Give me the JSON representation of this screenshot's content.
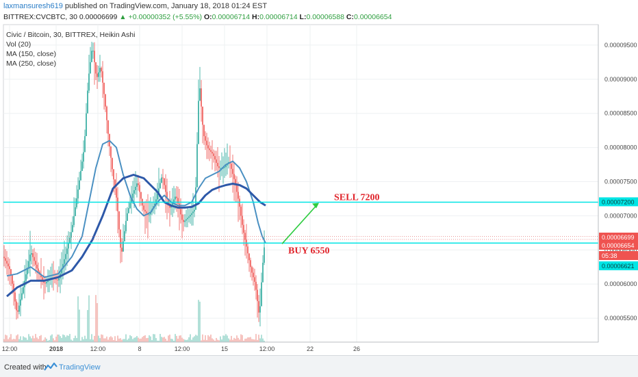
{
  "header": {
    "author": "laxmansuresh619",
    "published": "published on TradingView.com, January 18, 2018 01:24 EST",
    "symbol": "BITTREX:CVCBTC, 30",
    "last": "0.00006699",
    "change": "+0.00000352 (+5.55%)",
    "open_label": "O:",
    "open": "0.00006714",
    "high_label": "H:",
    "high": "0.00006714",
    "low_label": "L:",
    "low": "0.00006588",
    "close_label": "C:",
    "close": "0.00006654"
  },
  "legend": [
    "Civic / Bitcoin, 30, BITTREX, Heikin Ashi",
    "Vol (20)",
    "MA (150, close)",
    "MA (250, close)"
  ],
  "footer": {
    "created_with": "Created with",
    "brand": "TradingView"
  },
  "colors": {
    "up": "#26a69a",
    "down": "#ef5350",
    "ma150": "#4a90c2",
    "ma250": "#2d58a8",
    "hline": "#00e5e5",
    "annotation": "#e0242b",
    "arrow": "#2ecc40"
  },
  "chart_data": {
    "type": "candlestick",
    "title": "Civic / Bitcoin, 30, BITTREX, Heikin Ashi",
    "ylim": [
      5.15e-05,
      9.8e-05
    ],
    "y_ticks": [
      "0.00009500",
      "0.00009000",
      "0.00008500",
      "0.00008000",
      "0.00007500",
      "0.00007000",
      "0.00006500",
      "0.00006000",
      "0.00005500"
    ],
    "x_ticks": [
      "12:00",
      "2018",
      "12:00",
      "8",
      "12:00",
      "15",
      "12:00",
      "22",
      "26"
    ],
    "price_markers": [
      {
        "label": "0.00007200",
        "value": 7.2e-05,
        "style": "cyan"
      },
      {
        "label": "0.00006699",
        "value": 6.699e-05,
        "style": "red"
      },
      {
        "label": "0.00006654",
        "value": 6.654e-05,
        "style": "red"
      },
      {
        "label": "05:38",
        "value": 6.52e-05,
        "style": "red"
      },
      {
        "label": "0.00006621",
        "value": 6.621e-05,
        "style": "cyan"
      }
    ],
    "horizontal_lines": [
      7.2e-05,
      6.6e-05
    ],
    "annotations": [
      {
        "text": "SELL 7200",
        "value": 7.28e-05
      },
      {
        "text": "BUY 6550",
        "value": 6.5e-05
      }
    ],
    "price_path": [
      [
        0,
        6.4e-05
      ],
      [
        10,
        6.2e-05
      ],
      [
        20,
        5.55e-05
      ],
      [
        30,
        6e-05
      ],
      [
        40,
        6.48e-05
      ],
      [
        50,
        6.2e-05
      ],
      [
        60,
        6e-05
      ],
      [
        70,
        6.1e-05
      ],
      [
        80,
        6.05e-05
      ],
      [
        90,
        6.4e-05
      ],
      [
        100,
        6.8e-05
      ],
      [
        110,
        7.45e-05
      ],
      [
        118,
        8e-05
      ],
      [
        124,
        9e-05
      ],
      [
        130,
        9.5e-05
      ],
      [
        136,
        9e-05
      ],
      [
        142,
        9.2e-05
      ],
      [
        148,
        8.7e-05
      ],
      [
        154,
        8.1e-05
      ],
      [
        160,
        7.6e-05
      ],
      [
        166,
        7.2e-05
      ],
      [
        172,
        6.4e-05
      ],
      [
        180,
        7e-05
      ],
      [
        188,
        7.3e-05
      ],
      [
        196,
        7.5e-05
      ],
      [
        204,
        7.1e-05
      ],
      [
        212,
        7e-05
      ],
      [
        222,
        7.2e-05
      ],
      [
        232,
        7.6e-05
      ],
      [
        242,
        7.1e-05
      ],
      [
        252,
        7.3e-05
      ],
      [
        262,
        6.9e-05
      ],
      [
        272,
        7e-05
      ],
      [
        280,
        7.1e-05
      ],
      [
        286,
        9e-05
      ],
      [
        292,
        8.2e-05
      ],
      [
        298,
        8e-05
      ],
      [
        306,
        7.9e-05
      ],
      [
        314,
        7.7e-05
      ],
      [
        322,
        7.7e-05
      ],
      [
        330,
        7.8e-05
      ],
      [
        338,
        7.5e-05
      ],
      [
        344,
        7.2e-05
      ],
      [
        350,
        6.8e-05
      ],
      [
        356,
        6.5e-05
      ],
      [
        362,
        6.2e-05
      ],
      [
        368,
        6e-05
      ],
      [
        374,
        5.5e-05
      ],
      [
        378,
        6.2e-05
      ],
      [
        382,
        6.65e-05
      ]
    ],
    "series": [
      {
        "name": "MA (150, close)",
        "points": [
          [
            5,
            6.12e-05
          ],
          [
            20,
            6.15e-05
          ],
          [
            40,
            6.25e-05
          ],
          [
            60,
            6.1e-05
          ],
          [
            80,
            6.15e-05
          ],
          [
            100,
            6.4e-05
          ],
          [
            115,
            6.7e-05
          ],
          [
            125,
            7.2e-05
          ],
          [
            135,
            7.7e-05
          ],
          [
            145,
            8.05e-05
          ],
          [
            155,
            8.1e-05
          ],
          [
            165,
            8e-05
          ],
          [
            175,
            7.6e-05
          ],
          [
            185,
            7.3e-05
          ],
          [
            195,
            7.1e-05
          ],
          [
            205,
            7e-05
          ],
          [
            215,
            7.05e-05
          ],
          [
            225,
            7.2e-05
          ],
          [
            235,
            7.3e-05
          ],
          [
            245,
            7.2e-05
          ],
          [
            255,
            7.15e-05
          ],
          [
            265,
            7.15e-05
          ],
          [
            275,
            7.2e-05
          ],
          [
            285,
            7.4e-05
          ],
          [
            295,
            7.55e-05
          ],
          [
            305,
            7.6e-05
          ],
          [
            315,
            7.65e-05
          ],
          [
            325,
            7.75e-05
          ],
          [
            335,
            7.8e-05
          ],
          [
            345,
            7.7e-05
          ],
          [
            355,
            7.5e-05
          ],
          [
            365,
            7.2e-05
          ],
          [
            372,
            6.9e-05
          ],
          [
            378,
            6.7e-05
          ],
          [
            383,
            6.6e-05
          ]
        ]
      },
      {
        "name": "MA (250, close)",
        "points": [
          [
            5,
            5.82e-05
          ],
          [
            20,
            5.95e-05
          ],
          [
            40,
            6.05e-05
          ],
          [
            60,
            6.05e-05
          ],
          [
            80,
            6.1e-05
          ],
          [
            100,
            6.2e-05
          ],
          [
            115,
            6.4e-05
          ],
          [
            130,
            6.65e-05
          ],
          [
            145,
            7e-05
          ],
          [
            160,
            7.4e-05
          ],
          [
            175,
            7.55e-05
          ],
          [
            190,
            7.6e-05
          ],
          [
            205,
            7.55e-05
          ],
          [
            215,
            7.45e-05
          ],
          [
            225,
            7.35e-05
          ],
          [
            235,
            7.2e-05
          ],
          [
            245,
            7.15e-05
          ],
          [
            255,
            7.12e-05
          ],
          [
            265,
            7.12e-05
          ],
          [
            275,
            7.13e-05
          ],
          [
            285,
            7.18e-05
          ],
          [
            295,
            7.3e-05
          ],
          [
            305,
            7.38e-05
          ],
          [
            315,
            7.42e-05
          ],
          [
            325,
            7.45e-05
          ],
          [
            335,
            7.47e-05
          ],
          [
            345,
            7.45e-05
          ],
          [
            355,
            7.4e-05
          ],
          [
            365,
            7.3e-05
          ],
          [
            375,
            7.2e-05
          ],
          [
            383,
            7.15e-05
          ]
        ]
      }
    ]
  }
}
